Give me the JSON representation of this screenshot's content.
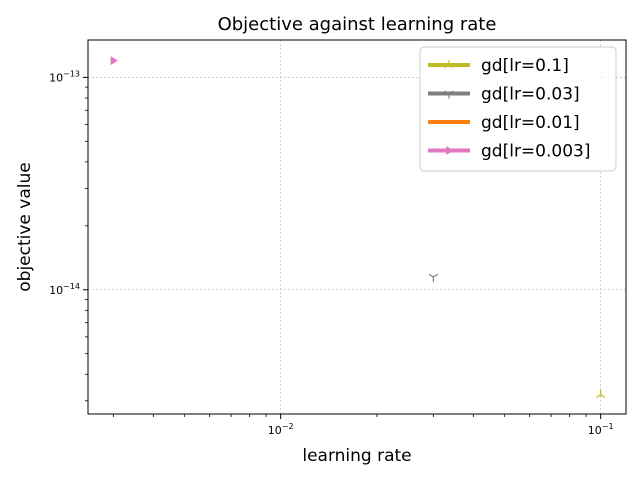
{
  "chart_data": {
    "type": "scatter",
    "title": "Objective against learning rate",
    "xlabel": "learning rate",
    "ylabel": "objective value",
    "xscale": "log",
    "yscale": "log",
    "xlim": [
      0.0025,
      0.12
    ],
    "ylim": [
      2.6e-15,
      1.5e-13
    ],
    "grid": true,
    "legend_position": "top-right",
    "x_tick_labels": [
      {
        "value": 0.01,
        "base": "10",
        "exp": "−2"
      },
      {
        "value": 0.1,
        "base": "10",
        "exp": "−1"
      }
    ],
    "y_tick_labels": [
      {
        "value": 1e-14,
        "base": "10",
        "exp": "−14"
      },
      {
        "value": 1e-13,
        "base": "10",
        "exp": "−13"
      }
    ],
    "series": [
      {
        "name": "gd[lr=0.1]",
        "color": "#bcbd22",
        "marker": "tri-up",
        "x": [
          0.1
        ],
        "y": [
          3.2e-15
        ]
      },
      {
        "name": "gd[lr=0.03]",
        "color": "#7f7f7f",
        "marker": "tri-down",
        "x": [
          0.03
        ],
        "y": [
          1.15e-14
        ]
      },
      {
        "name": "gd[lr=0.01]",
        "color": "#ff7f0e",
        "marker": "none",
        "x": [],
        "y": []
      },
      {
        "name": "gd[lr=0.003]",
        "color": "#e377c2",
        "marker": "triangle-right",
        "x": [
          0.003
        ],
        "y": [
          1.2e-13
        ]
      }
    ]
  }
}
